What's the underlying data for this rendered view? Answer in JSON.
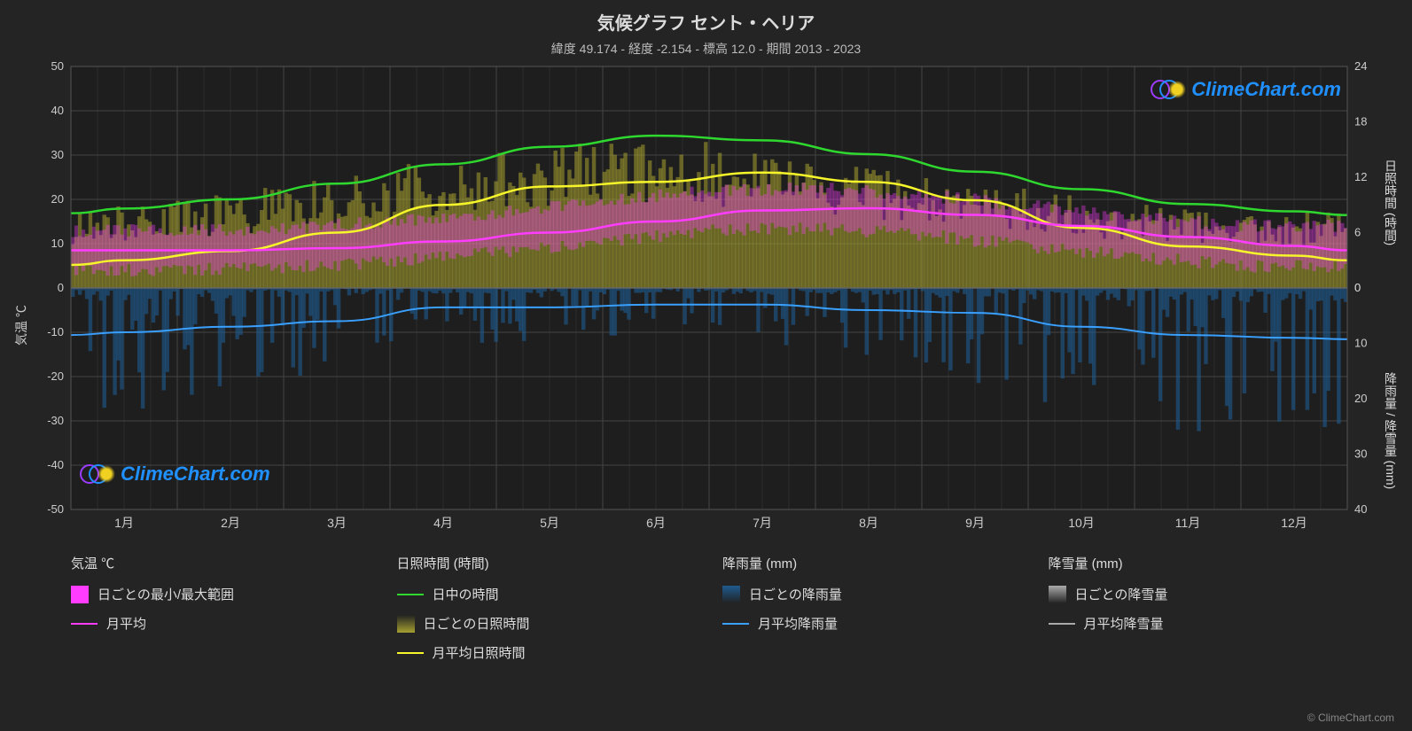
{
  "title": "気候グラフ セント・ヘリア",
  "subtitle": "緯度 49.174 - 経度 -2.154 - 標高 12.0 - 期間 2013 - 2023",
  "logo_text": "ClimeChart.com",
  "attribution": "© ClimeChart.com",
  "chart": {
    "background_color": "#242424",
    "plot_bg": "#2a2a2a",
    "grid_color": "#444444",
    "grid_minor_color": "#3a3a3a",
    "text_color": "#cccccc",
    "months": [
      "1月",
      "2月",
      "3月",
      "4月",
      "5月",
      "6月",
      "7月",
      "8月",
      "9月",
      "10月",
      "11月",
      "12月"
    ],
    "left_axis": {
      "label": "気温 ℃",
      "min": -50,
      "max": 50,
      "step": 10,
      "ticks": [
        -50,
        -40,
        -30,
        -20,
        -10,
        0,
        10,
        20,
        30,
        40,
        50
      ]
    },
    "right_axis_top": {
      "label": "日照時間 (時間)",
      "min": 0,
      "max": 24,
      "step": 6,
      "ticks": [
        0,
        6,
        12,
        18,
        24
      ]
    },
    "right_axis_bottom": {
      "label": "降雨量 / 降雪量 (mm)",
      "min": 0,
      "max": 40,
      "step": 10,
      "ticks": [
        0,
        10,
        20,
        30,
        40
      ]
    },
    "series": {
      "daylight": {
        "color": "#2fd82f",
        "values": [
          8.6,
          9.6,
          11.3,
          13.4,
          15.3,
          16.5,
          16.0,
          14.5,
          12.6,
          10.7,
          9.1,
          8.3
        ]
      },
      "sunshine_avg": {
        "color": "#f6f62a",
        "values": [
          3.0,
          4.0,
          6.0,
          9.0,
          11.0,
          11.5,
          12.5,
          11.5,
          9.5,
          6.5,
          4.5,
          3.5
        ]
      },
      "temp_avg": {
        "color": "#ff3cff",
        "values": [
          8.5,
          8.5,
          9.0,
          10.5,
          12.5,
          15.0,
          17.5,
          18.0,
          16.5,
          14.0,
          11.5,
          9.5
        ]
      },
      "rainfall_avg": {
        "color": "#3aa0ff",
        "values": [
          8.0,
          7.0,
          6.0,
          3.5,
          3.5,
          3.0,
          3.0,
          4.0,
          4.5,
          7.0,
          8.5,
          9.0
        ]
      },
      "temp_range_color": "#ff3cff",
      "sunshine_band_color": "#a5a030",
      "rain_band_color": "#1e5a8f",
      "snow_band_color": "#aaaaaa"
    },
    "logo_colors": {
      "circle1": "#9b3cff",
      "circle2": "#2090ff",
      "sun": "#f0d020"
    }
  },
  "legend": {
    "temp": {
      "header": "気温 ℃",
      "range": "日ごとの最小/最大範囲",
      "avg": "月平均"
    },
    "sunshine": {
      "header": "日照時間 (時間)",
      "daylight": "日中の時間",
      "daily": "日ごとの日照時間",
      "avg": "月平均日照時間"
    },
    "rain": {
      "header": "降雨量 (mm)",
      "daily": "日ごとの降雨量",
      "avg": "月平均降雨量"
    },
    "snow": {
      "header": "降雪量 (mm)",
      "daily": "日ごとの降雪量",
      "avg": "月平均降雪量"
    }
  }
}
